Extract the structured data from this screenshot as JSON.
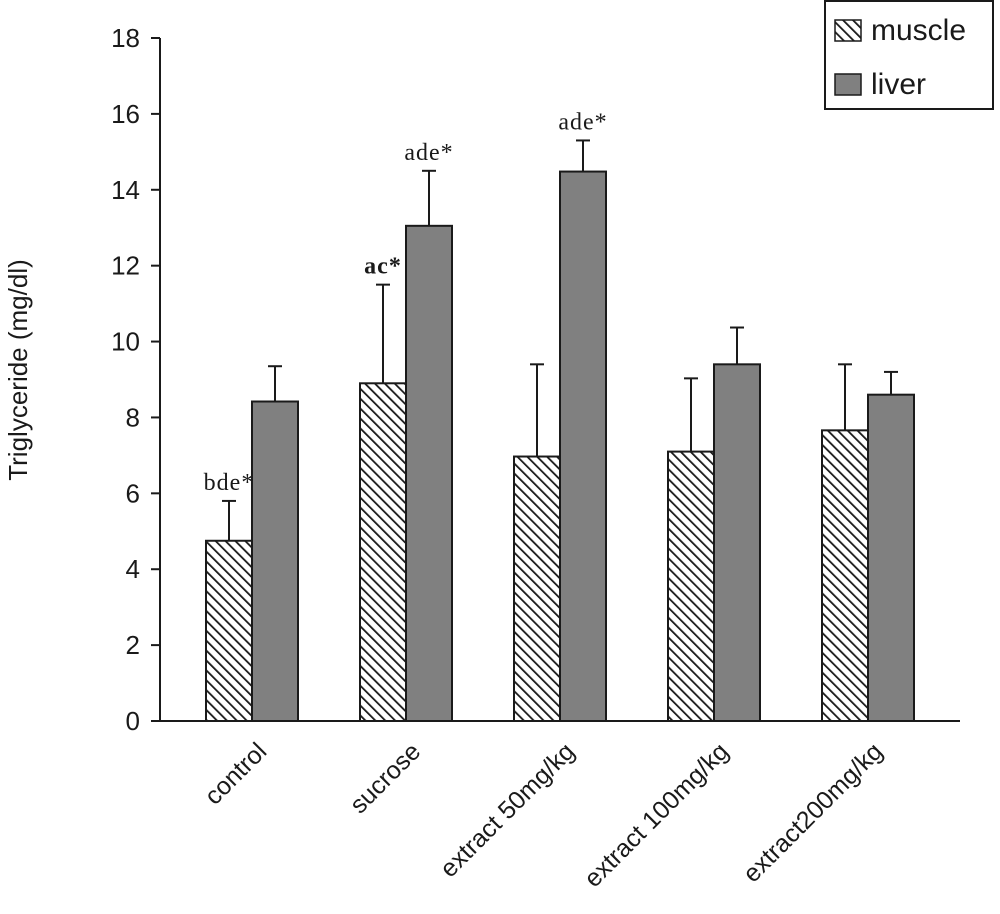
{
  "chart_data": {
    "type": "bar",
    "categories": [
      "control",
      "sucrose",
      "extract 50mg/kg",
      "extract 100mg/kg",
      "extract200mg/kg"
    ],
    "series": [
      {
        "name": "muscle",
        "values": [
          4.75,
          8.9,
          6.97,
          7.1,
          7.66
        ],
        "errors": [
          1.05,
          2.6,
          2.43,
          1.93,
          1.74
        ],
        "annotations": [
          "bde*",
          "ac*",
          "",
          "",
          ""
        ],
        "annotation_bold": [
          false,
          true,
          false,
          false,
          false
        ],
        "fill": "hatched"
      },
      {
        "name": "liver",
        "values": [
          8.42,
          13.05,
          14.48,
          9.4,
          8.6
        ],
        "errors": [
          0.93,
          1.45,
          0.82,
          0.97,
          0.6
        ],
        "annotations": [
          "",
          "ade*",
          "ade*",
          "",
          ""
        ],
        "annotation_bold": [
          false,
          false,
          false,
          false,
          false
        ],
        "fill": "#808080"
      }
    ],
    "title": "",
    "xlabel": "",
    "ylabel": "Triglyceride (mg/dl)",
    "ylim": [
      0,
      18
    ],
    "yticks": [
      0,
      2,
      4,
      6,
      8,
      10,
      12,
      14,
      16,
      18
    ],
    "grid": false,
    "legend_position": "top-right"
  },
  "colors": {
    "liver_fill": "#808080",
    "axis": "#1a1a1a",
    "hatch": "#1a1a1a",
    "background": "#ffffff"
  }
}
